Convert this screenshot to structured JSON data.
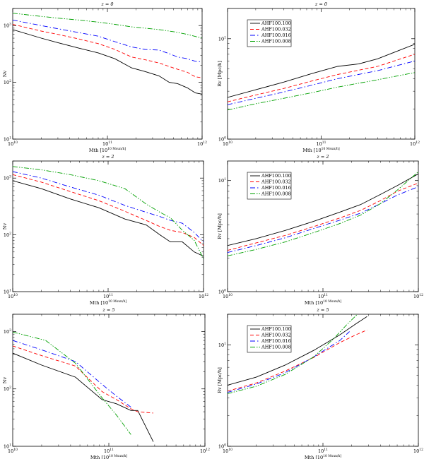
{
  "chart_data": [
    {
      "type": "line",
      "title": "z = 0",
      "xlabel": "Mth [10^10 Msun/h]",
      "ylabel": "Nv",
      "xscale": "log",
      "yscale": "log",
      "xlim": [
        10000000000.0,
        1000000000000.0
      ],
      "ylim": [
        10,
        2000
      ],
      "xticks": [
        {
          "v": 10000000000.0,
          "label": "10^10"
        },
        {
          "v": 100000000000.0,
          "label": "10^11"
        },
        {
          "v": 1000000000000.0,
          "label": "10^12"
        }
      ],
      "yticks": [
        {
          "v": 10,
          "label": "10^1"
        },
        {
          "v": 100,
          "label": "10^2"
        },
        {
          "v": 1000,
          "label": "10^3"
        }
      ],
      "legend": null,
      "series": [
        {
          "name": "AHF100.100",
          "color": "#000000",
          "dash": "solid",
          "x": [
            10000000000.0,
            20000000000.0,
            30000000000.0,
            50000000000.0,
            80000000000.0,
            120000000000.0,
            180000000000.0,
            250000000000.0,
            350000000000.0,
            450000000000.0,
            550000000000.0,
            700000000000.0,
            850000000000.0,
            1000000000000.0
          ],
          "y": [
            850,
            600,
            500,
            400,
            330,
            260,
            180,
            155,
            130,
            100,
            95,
            80,
            65,
            62
          ]
        },
        {
          "name": "AHF100.032",
          "color": "#ff0000",
          "dash": "dashed",
          "x": [
            10000000000.0,
            20000000000.0,
            30000000000.0,
            50000000000.0,
            80000000000.0,
            120000000000.0,
            180000000000.0,
            250000000000.0,
            350000000000.0,
            450000000000.0,
            550000000000.0,
            700000000000.0,
            850000000000.0,
            1000000000000.0
          ],
          "y": [
            1050,
            800,
            700,
            580,
            480,
            380,
            280,
            250,
            220,
            190,
            170,
            150,
            125,
            120
          ]
        },
        {
          "name": "AHF100.016",
          "color": "#0000ff",
          "dash": "dashdot",
          "x": [
            10000000000.0,
            20000000000.0,
            30000000000.0,
            50000000000.0,
            80000000000.0,
            120000000000.0,
            180000000000.0,
            250000000000.0,
            350000000000.0,
            450000000000.0,
            550000000000.0,
            700000000000.0,
            850000000000.0,
            1000000000000.0
          ],
          "y": [
            1250,
            1000,
            880,
            750,
            650,
            520,
            420,
            380,
            370,
            320,
            280,
            260,
            235,
            230
          ]
        },
        {
          "name": "AHF100.008",
          "color": "#00a000",
          "dash": "dashdotdot",
          "x": [
            10000000000.0,
            20000000000.0,
            30000000000.0,
            50000000000.0,
            80000000000.0,
            120000000000.0,
            180000000000.0,
            250000000000.0,
            350000000000.0,
            500000000000.0,
            700000000000.0,
            1000000000000.0
          ],
          "y": [
            1650,
            1450,
            1350,
            1250,
            1150,
            1050,
            950,
            900,
            850,
            780,
            700,
            600
          ]
        }
      ]
    },
    {
      "type": "line",
      "title": "z = 0",
      "xlabel": "Mth [10^10 Msun/h]",
      "ylabel": "Rv [Mpc/h]",
      "xscale": "log",
      "yscale": "log",
      "xlim": [
        10000000000.0,
        1000000000000.0
      ],
      "ylim": [
        1,
        20
      ],
      "xticks": [
        {
          "v": 10000000000.0,
          "label": "10^10"
        },
        {
          "v": 100000000000.0,
          "label": "10^11"
        },
        {
          "v": 1000000000000.0,
          "label": "10^12"
        }
      ],
      "yticks": [
        {
          "v": 1,
          "label": "10^0"
        },
        {
          "v": 10,
          "label": "10^1"
        }
      ],
      "legend": "top-left",
      "series": [
        {
          "name": "AHF100.100",
          "color": "#000000",
          "dash": "solid",
          "x": [
            10000000000.0,
            20000000000.0,
            40000000000.0,
            80000000000.0,
            150000000000.0,
            250000000000.0,
            400000000000.0,
            600000000000.0,
            1000000000000.0
          ],
          "y": [
            2.6,
            3.1,
            3.7,
            4.5,
            5.3,
            5.6,
            6.3,
            7.3,
            8.8
          ]
        },
        {
          "name": "AHF100.032",
          "color": "#ff0000",
          "dash": "dashed",
          "x": [
            10000000000.0,
            20000000000.0,
            40000000000.0,
            80000000000.0,
            150000000000.0,
            250000000000.0,
            400000000000.0,
            600000000000.0,
            1000000000000.0
          ],
          "y": [
            2.35,
            2.75,
            3.2,
            3.8,
            4.4,
            4.85,
            5.3,
            6.0,
            7.0
          ]
        },
        {
          "name": "AHF100.016",
          "color": "#0000ff",
          "dash": "dashdot",
          "x": [
            10000000000.0,
            20000000000.0,
            40000000000.0,
            80000000000.0,
            150000000000.0,
            250000000000.0,
            400000000000.0,
            600000000000.0,
            1000000000000.0
          ],
          "y": [
            2.2,
            2.55,
            2.95,
            3.45,
            4.0,
            4.4,
            4.8,
            5.3,
            6.0
          ]
        },
        {
          "name": "AHF100.008",
          "color": "#00a000",
          "dash": "dashdotdot",
          "x": [
            10000000000.0,
            20000000000.0,
            40000000000.0,
            80000000000.0,
            150000000000.0,
            250000000000.0,
            400000000000.0,
            600000000000.0,
            1000000000000.0
          ],
          "y": [
            1.95,
            2.25,
            2.55,
            2.9,
            3.3,
            3.6,
            3.9,
            4.2,
            4.6
          ]
        }
      ]
    },
    {
      "type": "line",
      "title": "z = 2",
      "xlabel": "Mth [10^10 Msun/h]",
      "ylabel": "Nv",
      "xscale": "log",
      "yscale": "log",
      "xlim": [
        10000000000.0,
        1000000000000.0
      ],
      "ylim": [
        10,
        2000
      ],
      "xticks": [
        {
          "v": 10000000000.0,
          "label": "10^10"
        },
        {
          "v": 100000000000.0,
          "label": "10^11"
        },
        {
          "v": 1000000000000.0,
          "label": "10^12"
        }
      ],
      "yticks": [
        {
          "v": 10,
          "label": "10^1"
        },
        {
          "v": 100,
          "label": "10^2"
        },
        {
          "v": 1000,
          "label": "10^3"
        }
      ],
      "legend": null,
      "series": [
        {
          "name": "AHF100.100",
          "color": "#000000",
          "dash": "solid",
          "x": [
            10000000000.0,
            20000000000.0,
            40000000000.0,
            80000000000.0,
            150000000000.0,
            250000000000.0,
            350000000000.0,
            450000000000.0,
            600000000000.0,
            800000000000.0,
            1000000000000.0
          ],
          "y": [
            900,
            650,
            430,
            300,
            190,
            150,
            100,
            75,
            75,
            50,
            42
          ]
        },
        {
          "name": "AHF100.032",
          "color": "#ff0000",
          "dash": "dashed",
          "x": [
            10000000000.0,
            20000000000.0,
            40000000000.0,
            80000000000.0,
            150000000000.0,
            250000000000.0,
            350000000000.0,
            450000000000.0,
            600000000000.0,
            800000000000.0,
            1000000000000.0
          ],
          "y": [
            1150,
            850,
            580,
            400,
            260,
            180,
            140,
            120,
            110,
            90,
            65
          ]
        },
        {
          "name": "AHF100.016",
          "color": "#0000ff",
          "dash": "dashdot",
          "x": [
            10000000000.0,
            20000000000.0,
            40000000000.0,
            80000000000.0,
            150000000000.0,
            250000000000.0,
            350000000000.0,
            450000000000.0,
            600000000000.0,
            800000000000.0,
            1000000000000.0
          ],
          "y": [
            1300,
            1000,
            700,
            500,
            330,
            250,
            210,
            180,
            160,
            110,
            75
          ]
        },
        {
          "name": "AHF100.008",
          "color": "#00a000",
          "dash": "dashdotdot",
          "x": [
            10000000000.0,
            20000000000.0,
            40000000000.0,
            80000000000.0,
            150000000000.0,
            250000000000.0,
            350000000000.0,
            450000000000.0,
            600000000000.0,
            800000000000.0,
            1000000000000.0
          ],
          "y": [
            1600,
            1400,
            1150,
            900,
            650,
            350,
            250,
            200,
            120,
            80,
            38
          ]
        }
      ]
    },
    {
      "type": "line",
      "title": "z = 2",
      "xlabel": "Mth [10^10 Msun/h]",
      "ylabel": "Rv [Mpc/h]",
      "xscale": "log",
      "yscale": "log",
      "xlim": [
        10000000000.0,
        1000000000000.0
      ],
      "ylim": [
        1,
        15
      ],
      "xticks": [
        {
          "v": 10000000000.0,
          "label": "10^10"
        },
        {
          "v": 100000000000.0,
          "label": "10^11"
        },
        {
          "v": 1000000000000.0,
          "label": "10^12"
        }
      ],
      "yticks": [
        {
          "v": 1,
          "label": "10^0"
        },
        {
          "v": 10,
          "label": "10^1"
        }
      ],
      "legend": "top-left",
      "series": [
        {
          "name": "AHF100.100",
          "color": "#000000",
          "dash": "solid",
          "x": [
            10000000000.0,
            20000000000.0,
            40000000000.0,
            80000000000.0,
            150000000000.0,
            250000000000.0,
            400000000000.0,
            600000000000.0,
            1000000000000.0
          ],
          "y": [
            2.6,
            3.0,
            3.55,
            4.3,
            5.2,
            6.1,
            7.5,
            9.0,
            11.5
          ]
        },
        {
          "name": "AHF100.032",
          "color": "#ff0000",
          "dash": "dashed",
          "x": [
            10000000000.0,
            20000000000.0,
            40000000000.0,
            80000000000.0,
            150000000000.0,
            250000000000.0,
            400000000000.0,
            600000000000.0,
            1000000000000.0
          ],
          "y": [
            2.35,
            2.75,
            3.2,
            3.85,
            4.6,
            5.4,
            6.6,
            8.0,
            9.5
          ]
        },
        {
          "name": "AHF100.016",
          "color": "#0000ff",
          "dash": "dashdot",
          "x": [
            10000000000.0,
            20000000000.0,
            40000000000.0,
            80000000000.0,
            150000000000.0,
            250000000000.0,
            400000000000.0,
            600000000000.0,
            1000000000000.0
          ],
          "y": [
            2.25,
            2.6,
            3.05,
            3.7,
            4.4,
            5.1,
            6.2,
            7.4,
            8.8
          ]
        },
        {
          "name": "AHF100.008",
          "color": "#00a000",
          "dash": "dashdotdot",
          "x": [
            10000000000.0,
            20000000000.0,
            40000000000.0,
            80000000000.0,
            150000000000.0,
            250000000000.0,
            400000000000.0,
            600000000000.0,
            1000000000000.0
          ],
          "y": [
            2.1,
            2.4,
            2.8,
            3.4,
            4.1,
            4.9,
            6.2,
            8.2,
            12.0
          ]
        }
      ]
    },
    {
      "type": "line",
      "title": "z = 5",
      "xlabel": "Mth [10^10 Msun/h]",
      "ylabel": "Nv",
      "xscale": "log",
      "yscale": "log",
      "xlim": [
        10000000000.0,
        1000000000000.0
      ],
      "ylim": [
        10,
        2000
      ],
      "xticks": [
        {
          "v": 10000000000.0,
          "label": "10^10"
        },
        {
          "v": 100000000000.0,
          "label": "10^11"
        },
        {
          "v": 1000000000000.0,
          "label": "10^12"
        }
      ],
      "yticks": [
        {
          "v": 10,
          "label": "10^1"
        },
        {
          "v": 100,
          "label": "10^2"
        },
        {
          "v": 1000,
          "label": "10^3"
        }
      ],
      "legend": null,
      "series": [
        {
          "name": "AHF100.100",
          "color": "#000000",
          "dash": "solid",
          "x": [
            10000000000.0,
            20000000000.0,
            45000000000.0,
            85000000000.0,
            120000000000.0,
            170000000000.0,
            200000000000.0,
            290000000000.0
          ],
          "y": [
            420,
            260,
            160,
            65,
            55,
            42,
            42,
            12
          ]
        },
        {
          "name": "AHF100.032",
          "color": "#ff0000",
          "dash": "dashed",
          "x": [
            10000000000.0,
            20000000000.0,
            45000000000.0,
            85000000000.0,
            120000000000.0,
            170000000000.0,
            200000000000.0,
            290000000000.0
          ],
          "y": [
            560,
            380,
            250,
            90,
            65,
            45,
            40,
            38
          ]
        },
        {
          "name": "AHF100.016",
          "color": "#0000ff",
          "dash": "dashdot",
          "x": [
            10000000000.0,
            20000000000.0,
            45000000000.0,
            85000000000.0,
            120000000000.0,
            170000000000.0
          ],
          "y": [
            700,
            480,
            300,
            120,
            75,
            48
          ]
        },
        {
          "name": "AHF100.008",
          "color": "#00a000",
          "dash": "dashdotdot",
          "x": [
            10000000000.0,
            22000000000.0,
            45000000000.0,
            85000000000.0,
            120000000000.0,
            170000000000.0
          ],
          "y": [
            980,
            700,
            280,
            70,
            35,
            16
          ]
        }
      ]
    },
    {
      "type": "line",
      "title": "z = 5",
      "xlabel": "Mth [10^10 Msun/h]",
      "ylabel": "Rv [Mpc/h]",
      "xscale": "log",
      "yscale": "log",
      "xlim": [
        10000000000.0,
        1000000000000.0
      ],
      "ylim": [
        1,
        20
      ],
      "xticks": [
        {
          "v": 10000000000.0,
          "label": "10^10"
        },
        {
          "v": 100000000000.0,
          "label": "10^11"
        },
        {
          "v": 1000000000000.0,
          "label": "10^12"
        }
      ],
      "yticks": [
        {
          "v": 1,
          "label": "10^0"
        },
        {
          "v": 10,
          "label": "10^1"
        }
      ],
      "legend": "top-left",
      "series": [
        {
          "name": "AHF100.100",
          "color": "#000000",
          "dash": "solid",
          "x": [
            10000000000.0,
            20000000000.0,
            40000000000.0,
            80000000000.0,
            150000000000.0,
            220000000000.0,
            290000000000.0
          ],
          "y": [
            4.0,
            4.8,
            6.3,
            8.8,
            12.5,
            16.0,
            19.0
          ]
        },
        {
          "name": "AHF100.032",
          "color": "#ff0000",
          "dash": "dashed",
          "x": [
            10000000000.0,
            20000000000.0,
            40000000000.0,
            80000000000.0,
            150000000000.0,
            220000000000.0,
            290000000000.0
          ],
          "y": [
            3.5,
            4.2,
            5.5,
            7.5,
            10.5,
            12.5,
            14.0
          ]
        },
        {
          "name": "AHF100.016",
          "color": "#0000ff",
          "dash": "dashdot",
          "x": [
            10000000000.0,
            20000000000.0,
            40000000000.0,
            80000000000.0,
            150000000000.0,
            190000000000.0
          ],
          "y": [
            3.4,
            4.1,
            5.3,
            7.6,
            11.0,
            13.5
          ]
        },
        {
          "name": "AHF100.008",
          "color": "#00a000",
          "dash": "dashdotdot",
          "x": [
            10000000000.0,
            20000000000.0,
            40000000000.0,
            80000000000.0,
            130000000000.0,
            180000000000.0,
            230000000000.0
          ],
          "y": [
            3.3,
            3.9,
            5.1,
            7.6,
            11.5,
            16.0,
            20.0
          ]
        }
      ]
    }
  ]
}
